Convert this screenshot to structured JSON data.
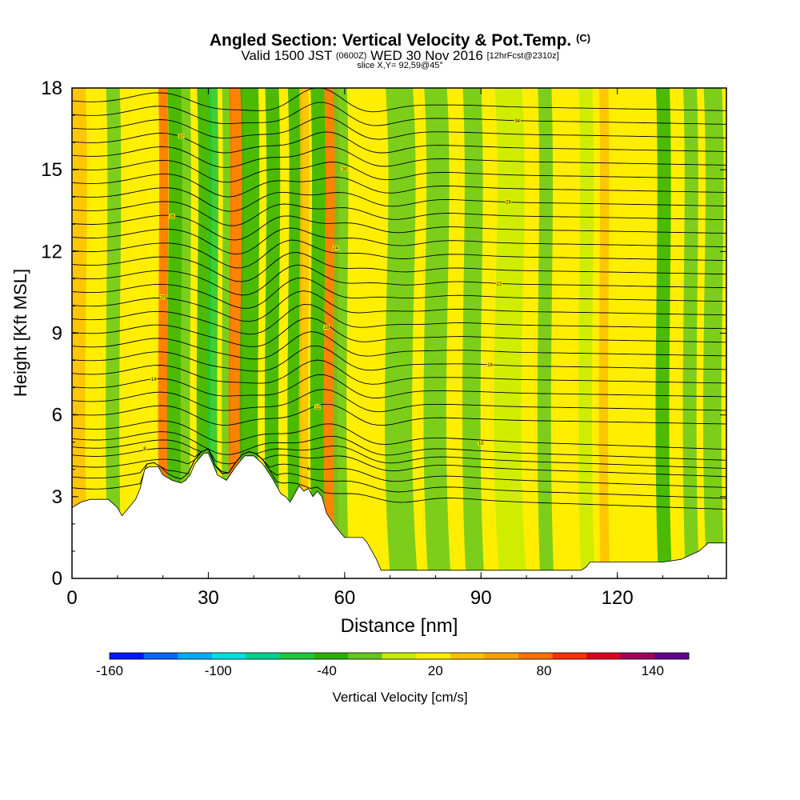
{
  "titles": {
    "main": "Angled Section: Vertical Velocity & Pot.Temp.",
    "main_unit": "(C)",
    "valid_a": "Valid 1500 JST",
    "valid_b": "(0600Z)",
    "valid_c": "WED 30 Nov 2016",
    "valid_d": "[12hrFcst@2310z]",
    "slice": "slice X,Y= 92,59@45°"
  },
  "chart_data": {
    "type": "heatmap",
    "xlabel": "Distance [nm]",
    "ylabel": "Height [Kft MSL]",
    "xlim": [
      0,
      144
    ],
    "ylim": [
      0,
      18
    ],
    "x_ticks": [
      0,
      30,
      60,
      90,
      120
    ],
    "y_ticks": [
      0,
      3,
      6,
      9,
      12,
      15,
      18
    ],
    "colorbar": {
      "label": "Vertical Velocity [cm/s]",
      "levels": [
        -160,
        -140,
        -120,
        -100,
        -80,
        -60,
        -40,
        -20,
        0,
        20,
        40,
        60,
        80,
        100,
        120,
        140,
        160
      ],
      "tick_labels": [
        -160,
        -100,
        -40,
        20,
        80,
        140
      ],
      "colors": [
        "#0019ff",
        "#0066ff",
        "#00aaff",
        "#00e0e0",
        "#00d28c",
        "#1ec83c",
        "#2cb000",
        "#66c81e",
        "#c8ec00",
        "#ffee00",
        "#ffc000",
        "#ffa000",
        "#ff7000",
        "#ff3000",
        "#dd0020",
        "#a0005a",
        "#60008c"
      ]
    },
    "background_fill": "#ffee00",
    "terrain": {
      "color": "#ffffff",
      "distance_nm": [
        0,
        2,
        4,
        6,
        8,
        10,
        11,
        12,
        14,
        15,
        16,
        17,
        19,
        20,
        22,
        24,
        25,
        26,
        27,
        29,
        30,
        31,
        32,
        34,
        36,
        38,
        40,
        42,
        44,
        45,
        46,
        47,
        48,
        49,
        50,
        51,
        52,
        53,
        54,
        55,
        56,
        58,
        60,
        62,
        64,
        65,
        66,
        67,
        68,
        70,
        80,
        90,
        100,
        112,
        113,
        114,
        120,
        130,
        134,
        138,
        140,
        144
      ],
      "height_kft": [
        2.6,
        2.8,
        2.9,
        2.9,
        2.9,
        2.6,
        2.3,
        2.5,
        2.9,
        3.3,
        4.0,
        4.1,
        4.1,
        3.8,
        3.6,
        3.5,
        3.6,
        3.8,
        4.2,
        4.6,
        4.6,
        4.2,
        3.8,
        3.6,
        4.1,
        4.5,
        4.5,
        4.2,
        3.7,
        3.4,
        3.1,
        3.0,
        2.8,
        3.1,
        3.4,
        3.2,
        3.3,
        3.0,
        3.2,
        3.0,
        2.4,
        1.9,
        1.5,
        1.5,
        1.5,
        1.3,
        1.0,
        0.7,
        0.3,
        0.3,
        0.3,
        0.3,
        0.3,
        0.3,
        0.4,
        0.6,
        0.6,
        0.6,
        0.7,
        1.0,
        1.3,
        1.3
      ]
    },
    "velocity_features": [
      {
        "x": 1.5,
        "w": 3,
        "value": 40
      },
      {
        "x": 9,
        "w": 3,
        "value": -10
      },
      {
        "x": 14,
        "w": 2,
        "value": 30
      },
      {
        "x": 18,
        "w": 3,
        "value": 30
      },
      {
        "x": 20,
        "w": 2,
        "value": 80
      },
      {
        "x": 22.5,
        "w": 3,
        "value": -40
      },
      {
        "x": 25,
        "w": 2,
        "value": -20
      },
      {
        "x": 29,
        "w": 3,
        "value": -40
      },
      {
        "x": 31,
        "w": 2,
        "value": -60
      },
      {
        "x": 34,
        "w": 2,
        "value": -20
      },
      {
        "x": 36,
        "w": 3,
        "value": 80
      },
      {
        "x": 39,
        "w": 4,
        "value": -40
      },
      {
        "x": 42,
        "w": 2,
        "value": 30
      },
      {
        "x": 44,
        "w": 3,
        "value": -30
      },
      {
        "x": 49,
        "w": 3,
        "value": -40
      },
      {
        "x": 51,
        "w": 2,
        "value": 40
      },
      {
        "x": 54,
        "w": 3,
        "value": -30
      },
      {
        "x": 57,
        "w": 3,
        "value": 80
      },
      {
        "x": 59,
        "w": 3,
        "value": -20
      },
      {
        "x": 62,
        "w": 2,
        "value": 30
      },
      {
        "x": 72,
        "w": 6,
        "value": -10
      },
      {
        "x": 80,
        "w": 5,
        "value": -10
      },
      {
        "x": 88,
        "w": 4,
        "value": -10
      },
      {
        "x": 96,
        "w": 6,
        "value": 0
      },
      {
        "x": 104,
        "w": 3,
        "value": -10
      },
      {
        "x": 113,
        "w": 3,
        "value": 0
      },
      {
        "x": 117,
        "w": 2,
        "value": 40
      },
      {
        "x": 130,
        "w": 3,
        "value": -30
      },
      {
        "x": 136,
        "w": 3,
        "value": -10
      },
      {
        "x": 141,
        "w": 4,
        "value": -20
      }
    ],
    "theta_levels": [
      {
        "start_height_kft": 3.4,
        "label": ""
      },
      {
        "start_height_kft": 3.8,
        "label": "6"
      },
      {
        "start_height_kft": 4.2,
        "label": ""
      },
      {
        "start_height_kft": 4.6,
        "label": "8"
      },
      {
        "start_height_kft": 4.9,
        "label": ""
      },
      {
        "start_height_kft": 5.2,
        "label": "10"
      },
      {
        "start_height_kft": 5.6,
        "label": ""
      },
      {
        "start_height_kft": 6.1,
        "label": "12"
      },
      {
        "start_height_kft": 6.6,
        "label": ""
      },
      {
        "start_height_kft": 7.1,
        "label": "14"
      },
      {
        "start_height_kft": 7.6,
        "label": ""
      },
      {
        "start_height_kft": 8.1,
        "label": "16"
      },
      {
        "start_height_kft": 8.6,
        "label": ""
      },
      {
        "start_height_kft": 9.1,
        "label": "18"
      },
      {
        "start_height_kft": 9.6,
        "label": ""
      },
      {
        "start_height_kft": 10.1,
        "label": "20"
      },
      {
        "start_height_kft": 10.6,
        "label": ""
      },
      {
        "start_height_kft": 11.1,
        "label": "22"
      },
      {
        "start_height_kft": 11.6,
        "label": ""
      },
      {
        "start_height_kft": 12.1,
        "label": "24"
      },
      {
        "start_height_kft": 12.6,
        "label": ""
      },
      {
        "start_height_kft": 13.1,
        "label": "26"
      },
      {
        "start_height_kft": 13.6,
        "label": ""
      },
      {
        "start_height_kft": 14.1,
        "label": "28"
      },
      {
        "start_height_kft": 14.6,
        "label": ""
      },
      {
        "start_height_kft": 15.1,
        "label": "30"
      },
      {
        "start_height_kft": 15.6,
        "label": ""
      },
      {
        "start_height_kft": 16.1,
        "label": "32"
      },
      {
        "start_height_kft": 16.6,
        "label": ""
      },
      {
        "start_height_kft": 17.1,
        "label": "34"
      },
      {
        "start_height_kft": 17.6,
        "label": ""
      }
    ]
  }
}
